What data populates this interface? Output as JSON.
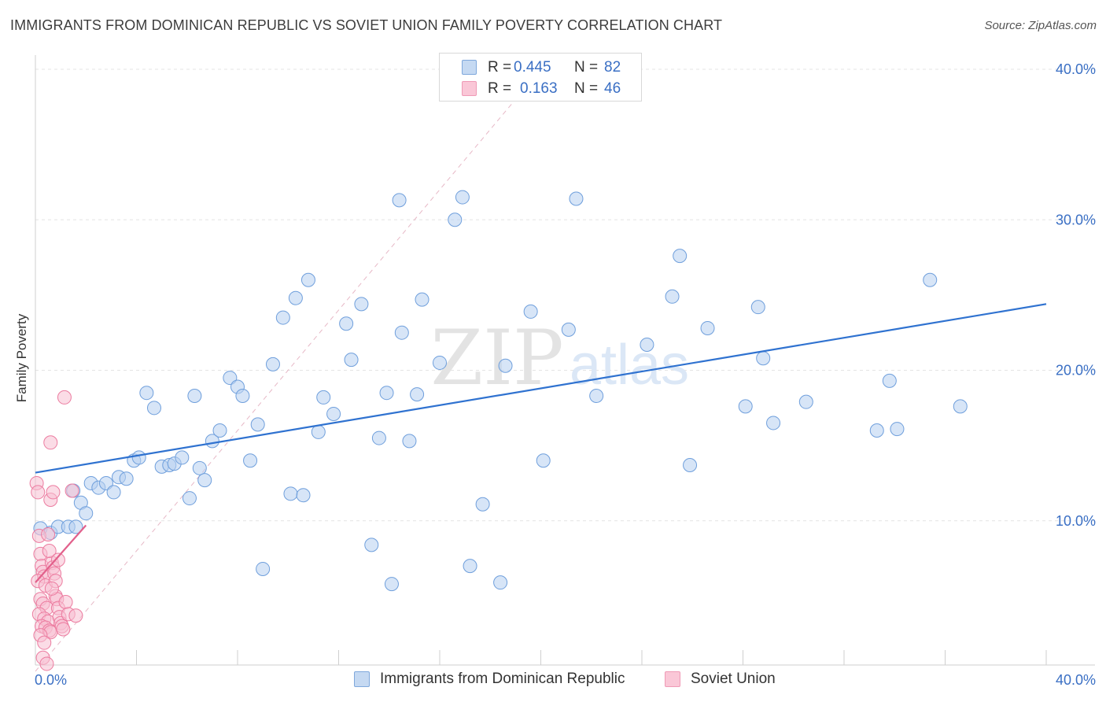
{
  "title": "IMMIGRANTS FROM DOMINICAN REPUBLIC VS SOVIET UNION FAMILY POVERTY CORRELATION CHART",
  "source": "Source: ZipAtlas.com",
  "watermark": {
    "zip": "ZIP",
    "atlas": "atlas"
  },
  "legend": {
    "series1": {
      "r_label": "R =",
      "r_value": "0.445",
      "n_label": "N =",
      "n_value": "82",
      "color": "#a9c6ec"
    },
    "series2": {
      "r_label": "R =",
      "r_value": "0.163",
      "n_label": "N =",
      "n_value": "46",
      "color": "#f5b3c8"
    }
  },
  "bottom_legend": {
    "series1": "Immigrants from Dominican Republic",
    "series2": "Soviet Union"
  },
  "chart_data": {
    "type": "scatter",
    "ylabel": "Family Poverty",
    "xlim": [
      0,
      40
    ],
    "ylim": [
      0,
      40
    ],
    "x_tick_labels": {
      "min": "0.0%",
      "max": "40.0%"
    },
    "y_ticks": [
      10,
      20,
      30,
      40
    ],
    "y_tick_labels": [
      "10.0%",
      "20.0%",
      "30.0%",
      "40.0%"
    ],
    "grid": true,
    "series": [
      {
        "name": "Immigrants from Dominican Republic",
        "color": "#6f9fdc",
        "fill": "#b7d0f0",
        "trend": {
          "x0": 0,
          "y0": 13.2,
          "x1": 40,
          "y1": 24.4,
          "color": "#2f72d0"
        },
        "points": [
          [
            0.2,
            9.5
          ],
          [
            0.6,
            9.2
          ],
          [
            0.9,
            9.6
          ],
          [
            1.3,
            9.6
          ],
          [
            1.6,
            9.6
          ],
          [
            1.5,
            12.0
          ],
          [
            1.8,
            11.2
          ],
          [
            2.0,
            10.5
          ],
          [
            2.2,
            12.5
          ],
          [
            2.5,
            12.2
          ],
          [
            2.8,
            12.5
          ],
          [
            3.1,
            11.9
          ],
          [
            3.3,
            12.9
          ],
          [
            3.6,
            12.8
          ],
          [
            3.9,
            14.0
          ],
          [
            4.1,
            14.2
          ],
          [
            4.4,
            18.5
          ],
          [
            4.7,
            17.5
          ],
          [
            5.0,
            13.6
          ],
          [
            5.3,
            13.7
          ],
          [
            5.5,
            13.8
          ],
          [
            5.8,
            14.2
          ],
          [
            6.1,
            11.5
          ],
          [
            6.3,
            18.3
          ],
          [
            6.5,
            13.5
          ],
          [
            6.7,
            12.7
          ],
          [
            7.0,
            15.3
          ],
          [
            7.3,
            16.0
          ],
          [
            7.7,
            19.5
          ],
          [
            8.0,
            18.9
          ],
          [
            8.2,
            18.3
          ],
          [
            8.5,
            14.0
          ],
          [
            8.8,
            16.4
          ],
          [
            9.0,
            6.8
          ],
          [
            9.4,
            20.4
          ],
          [
            9.8,
            23.5
          ],
          [
            10.1,
            11.8
          ],
          [
            10.3,
            24.8
          ],
          [
            10.6,
            11.7
          ],
          [
            10.8,
            26.0
          ],
          [
            11.2,
            15.9
          ],
          [
            11.4,
            18.2
          ],
          [
            11.8,
            17.1
          ],
          [
            12.3,
            23.1
          ],
          [
            12.5,
            20.7
          ],
          [
            12.9,
            24.4
          ],
          [
            13.3,
            8.4
          ],
          [
            13.6,
            15.5
          ],
          [
            13.9,
            18.5
          ],
          [
            14.1,
            5.8
          ],
          [
            14.4,
            31.3
          ],
          [
            14.5,
            22.5
          ],
          [
            14.8,
            15.3
          ],
          [
            15.1,
            18.4
          ],
          [
            15.3,
            24.7
          ],
          [
            16.0,
            20.5
          ],
          [
            16.6,
            30.0
          ],
          [
            16.9,
            31.5
          ],
          [
            17.2,
            7.0
          ],
          [
            17.7,
            11.1
          ],
          [
            18.4,
            5.9
          ],
          [
            18.6,
            20.3
          ],
          [
            19.6,
            23.9
          ],
          [
            20.1,
            14.0
          ],
          [
            21.1,
            22.7
          ],
          [
            21.4,
            31.4
          ],
          [
            22.2,
            18.3
          ],
          [
            24.2,
            21.7
          ],
          [
            25.2,
            24.9
          ],
          [
            25.5,
            27.6
          ],
          [
            25.9,
            13.7
          ],
          [
            26.6,
            22.8
          ],
          [
            28.1,
            17.6
          ],
          [
            28.6,
            24.2
          ],
          [
            28.8,
            20.8
          ],
          [
            29.2,
            16.5
          ],
          [
            30.5,
            17.9
          ],
          [
            33.3,
            16.0
          ],
          [
            33.8,
            19.3
          ],
          [
            34.1,
            16.1
          ],
          [
            35.4,
            26.0
          ],
          [
            36.6,
            17.6
          ]
        ]
      },
      {
        "name": "Soviet Union",
        "color": "#ec7ca0",
        "fill": "#f8bfd2",
        "trend": {
          "x0": 0,
          "y0": 5.9,
          "x1": 2.0,
          "y1": 9.7,
          "color": "#e2608b"
        },
        "points": [
          [
            0.05,
            12.5
          ],
          [
            0.1,
            11.9
          ],
          [
            0.15,
            9.0
          ],
          [
            0.2,
            7.8
          ],
          [
            0.25,
            7.0
          ],
          [
            0.3,
            6.6
          ],
          [
            0.35,
            6.3
          ],
          [
            0.1,
            6.0
          ],
          [
            0.4,
            5.7
          ],
          [
            0.2,
            4.8
          ],
          [
            0.3,
            4.5
          ],
          [
            0.45,
            4.2
          ],
          [
            0.15,
            3.8
          ],
          [
            0.35,
            3.5
          ],
          [
            0.5,
            3.3
          ],
          [
            0.25,
            3.0
          ],
          [
            0.4,
            2.9
          ],
          [
            0.55,
            2.7
          ],
          [
            0.6,
            2.6
          ],
          [
            0.3,
            0.9
          ],
          [
            0.45,
            0.5
          ],
          [
            0.6,
            15.2
          ],
          [
            0.65,
            7.2
          ],
          [
            0.7,
            6.9
          ],
          [
            0.75,
            6.5
          ],
          [
            0.8,
            5.0
          ],
          [
            0.85,
            4.8
          ],
          [
            0.9,
            4.2
          ],
          [
            0.95,
            3.6
          ],
          [
            1.0,
            3.2
          ],
          [
            1.05,
            3.0
          ],
          [
            1.1,
            2.8
          ],
          [
            0.5,
            9.1
          ],
          [
            0.55,
            8.0
          ],
          [
            0.6,
            11.4
          ],
          [
            0.7,
            11.9
          ],
          [
            0.8,
            6.0
          ],
          [
            0.9,
            7.4
          ],
          [
            1.15,
            18.2
          ],
          [
            1.2,
            4.6
          ],
          [
            1.3,
            3.8
          ],
          [
            1.45,
            12.0
          ],
          [
            1.6,
            3.7
          ],
          [
            0.2,
            2.4
          ],
          [
            0.35,
            1.9
          ],
          [
            0.65,
            5.5
          ]
        ]
      }
    ]
  }
}
